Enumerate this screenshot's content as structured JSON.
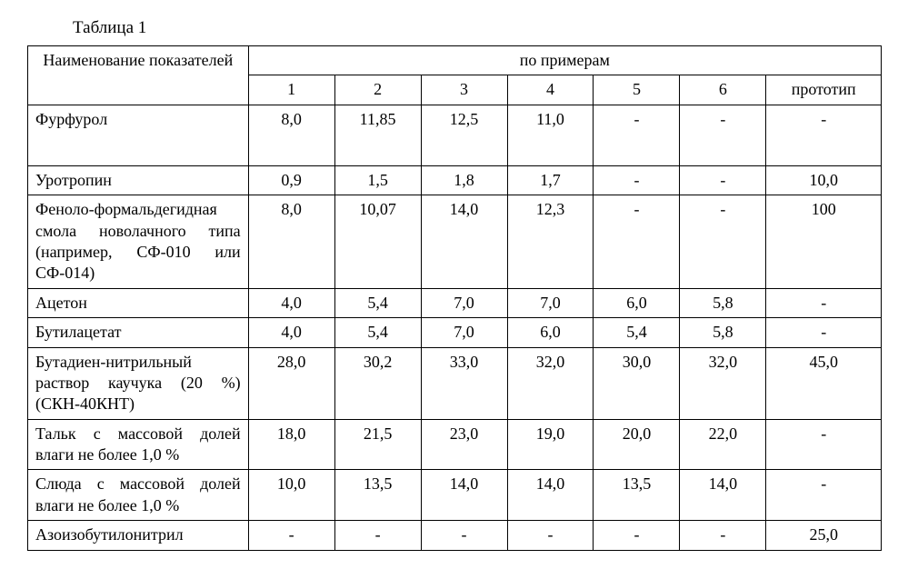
{
  "title": "Таблица 1",
  "header": {
    "col1_label": "Наименование показателей",
    "group_label": "по примерам",
    "sub": [
      "1",
      "2",
      "3",
      "4",
      "5",
      "6",
      "прототип"
    ]
  },
  "rows": [
    {
      "label": "Фурфурол",
      "v": [
        "8,0",
        "11,85",
        "12,5",
        "11,0",
        "-",
        "-",
        "-"
      ],
      "tall": true
    },
    {
      "label": "Уротропин",
      "v": [
        "0,9",
        "1,5",
        "1,8",
        "1,7",
        "-",
        "-",
        "10,0"
      ]
    },
    {
      "label": "Феноло-формальдегидная смола новолачного типа (например, СФ-010 или СФ-014)",
      "v": [
        "8,0",
        "10,07",
        "14,0",
        "12,3",
        "-",
        "-",
        "100"
      ],
      "justify": true
    },
    {
      "label": "Ацетон",
      "v": [
        "4,0",
        "5,4",
        "7,0",
        "7,0",
        "6,0",
        "5,8",
        "-"
      ]
    },
    {
      "label": "Бутилацетат",
      "v": [
        "4,0",
        "5,4",
        "7,0",
        "6,0",
        "5,4",
        "5,8",
        "-"
      ]
    },
    {
      "label": "Бутадиен-нитрильный раствор каучука (20 %) (СКН-40КНТ)",
      "v": [
        "28,0",
        "30,2",
        "33,0",
        "32,0",
        "30,0",
        "32,0",
        "45,0"
      ]
    },
    {
      "label": "Тальк с массовой долей влаги не более 1,0 %",
      "v": [
        "18,0",
        "21,5",
        "23,0",
        "19,0",
        "20,0",
        "22,0",
        "-"
      ]
    },
    {
      "label": "Слюда с массовой долей влаги не более 1,0 %",
      "v": [
        "10,0",
        "13,5",
        "14,0",
        "14,0",
        "13,5",
        "14,0",
        "-"
      ]
    },
    {
      "label": "Азоизобутилонитрил",
      "v": [
        "-",
        "-",
        "-",
        "-",
        "-",
        "-",
        "25,0"
      ]
    }
  ]
}
